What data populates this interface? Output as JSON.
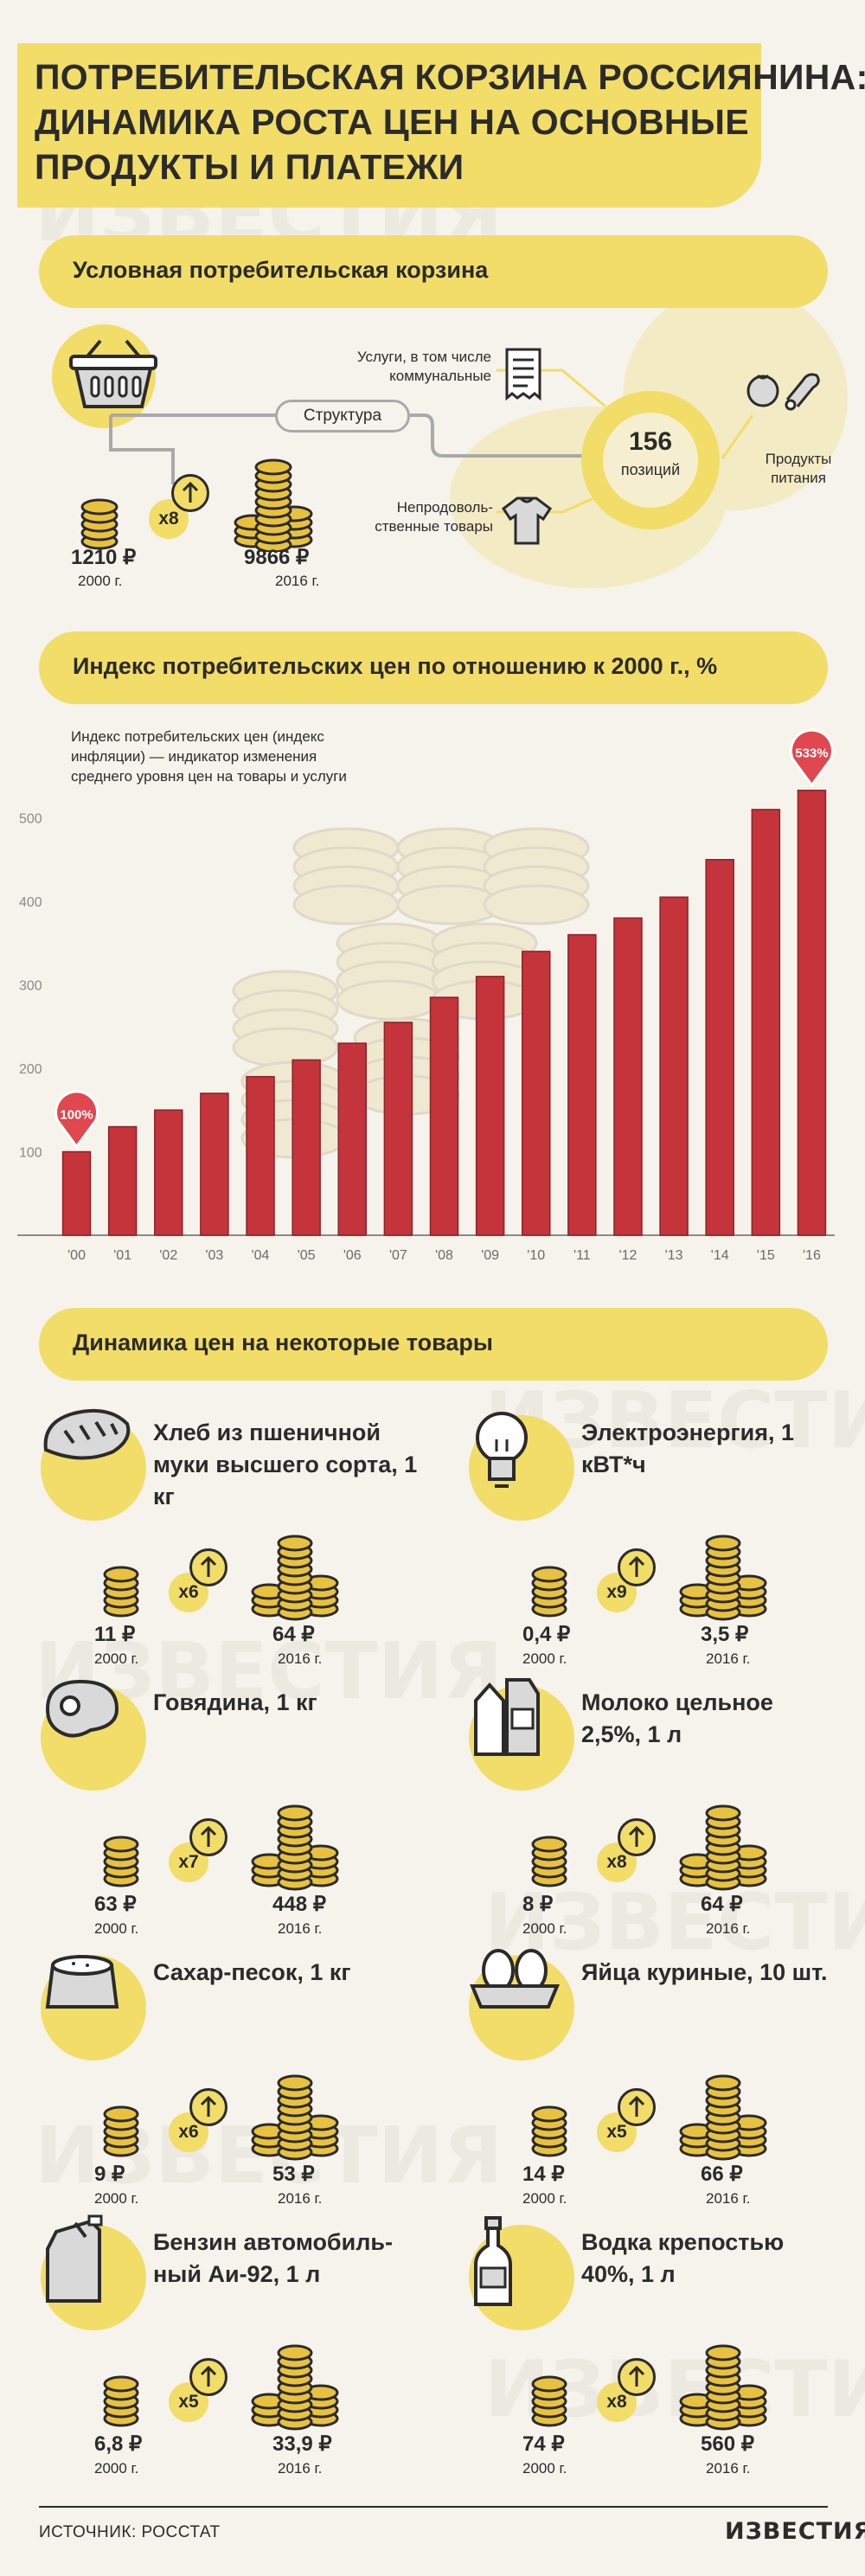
{
  "header": {
    "title_lines": [
      "ПОТРЕБИТЕЛЬСКАЯ КОРЗИНА РОССИЯНИНА:",
      "ДИНАМИКА РОСТА ЦЕН НА ОСНОВНЫЕ",
      "ПРОДУКТЫ И ПЛАТЕЖИ"
    ]
  },
  "watermark": "ИЗВЕСТИЯ",
  "basket": {
    "section_title": "Условная потребительская корзина",
    "structure_label": "Структура",
    "positions_count": "156",
    "positions_label": "позиций",
    "services_label": "Услуги, в том числе коммунальные",
    "nonfood_label": "Непродоволь-ственные товары",
    "food_label": "Продукты питания",
    "multiplier": "x8",
    "price_2000": "1210 ₽",
    "year_2000": "2000 г.",
    "price_2016": "9866 ₽",
    "year_2016": "2016 г."
  },
  "cpi": {
    "section_title": "Индекс потребительских цен по отношению к 2000 г., %",
    "note": "Индекс потребительских цен (индекс инфляции) — индикатор изменения среднего уровня цен на товары и услуги",
    "start_badge": "100%",
    "end_badge": "533%"
  },
  "chart_data": {
    "type": "bar",
    "title": "Индекс потребительских цен по отношению к 2000 г., %",
    "categories": [
      "'00",
      "'01",
      "'02",
      "'03",
      "'04",
      "'05",
      "'06",
      "'07",
      "'08",
      "'09",
      "'10",
      "'11",
      "'12",
      "'13",
      "'14",
      "'15",
      "'16"
    ],
    "values": [
      100,
      130,
      150,
      170,
      190,
      210,
      230,
      255,
      285,
      310,
      340,
      360,
      380,
      405,
      450,
      510,
      533
    ],
    "y_ticks": [
      100,
      200,
      300,
      400,
      500
    ],
    "ylim": [
      0,
      600
    ],
    "bar_color": "#c5343b",
    "annotations": [
      "100%",
      "533%"
    ],
    "grid": false
  },
  "products": {
    "section_title": "Динамика цен на некоторые товары",
    "items": [
      {
        "name": "Хлеб из пшеничной муки высшего сорта, 1 кг",
        "icon": "bread-icon",
        "price_2000": "11 ₽",
        "price_2016": "64 ₽",
        "multiplier": "x6",
        "year_2000": "2000 г.",
        "year_2016": "2016 г."
      },
      {
        "name": "Электроэнергия, 1 кВТ*ч",
        "icon": "lightbulb-icon",
        "price_2000": "0,4 ₽",
        "price_2016": "3,5 ₽",
        "multiplier": "x9",
        "year_2000": "2000 г.",
        "year_2016": "2016 г."
      },
      {
        "name": "Говядина, 1 кг",
        "icon": "steak-icon",
        "price_2000": "63 ₽",
        "price_2016": "448 ₽",
        "multiplier": "x7",
        "year_2000": "2000 г.",
        "year_2016": "2016 г."
      },
      {
        "name": "Молоко цельное 2,5%, 1 л",
        "icon": "milk-icon",
        "price_2000": "8 ₽",
        "price_2016": "64 ₽",
        "multiplier": "x8",
        "year_2000": "2000 г.",
        "year_2016": "2016 г."
      },
      {
        "name": "Сахар-песок, 1 кг",
        "icon": "sugar-bag-icon",
        "price_2000": "9 ₽",
        "price_2016": "53 ₽",
        "multiplier": "x6",
        "year_2000": "2000 г.",
        "year_2016": "2016 г."
      },
      {
        "name": "Яйца куриные, 10 шт.",
        "icon": "eggs-icon",
        "price_2000": "14 ₽",
        "price_2016": "66 ₽",
        "multiplier": "x5",
        "year_2000": "2000 г.",
        "year_2016": "2016 г."
      },
      {
        "name": "Бензин автомобиль-ный Аи-92, 1 л",
        "icon": "jerrycan-icon",
        "price_2000": "6,8 ₽",
        "price_2016": "33,9 ₽",
        "multiplier": "x5",
        "year_2000": "2000 г.",
        "year_2016": "2016 г."
      },
      {
        "name": "Водка крепостью 40%, 1 л",
        "icon": "vodka-bottle-icon",
        "price_2000": "74 ₽",
        "price_2016": "560 ₽",
        "multiplier": "x8",
        "year_2000": "2000 г.",
        "year_2016": "2016 г."
      }
    ]
  },
  "footer": {
    "source": "ИСТОЧНИК: РОССТАТ",
    "brand": "ИЗВЕСТИЯ"
  },
  "colors": {
    "accent_yellow": "#f1dd68",
    "bar_red": "#c5343b",
    "coin_gold": "#e8c23f",
    "background": "#f6f3ec",
    "text_dark": "#2b2b2b"
  }
}
